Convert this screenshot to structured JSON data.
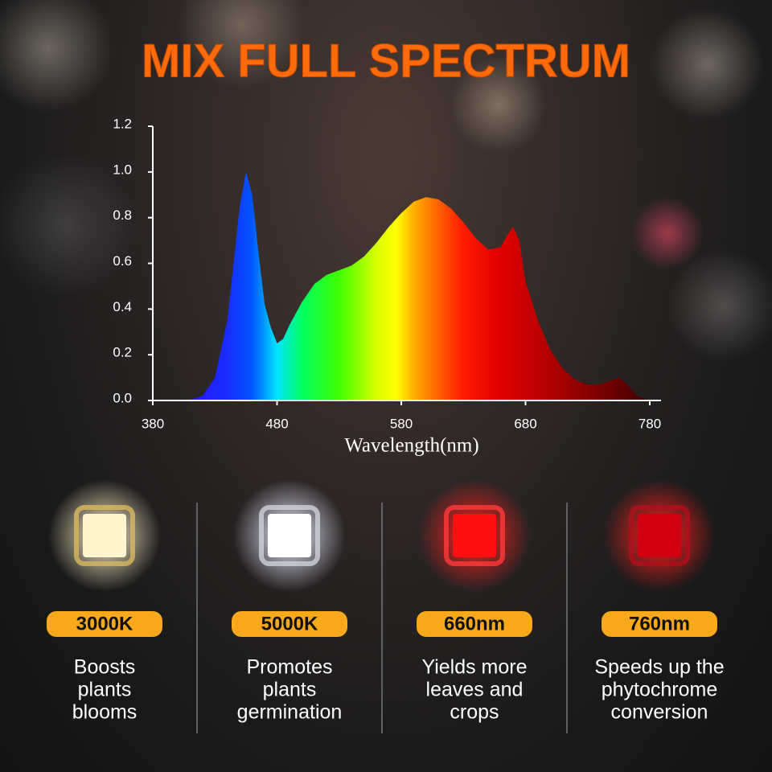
{
  "title": "MIX FULL SPECTRUM",
  "chart_data": {
    "type": "area",
    "x_label": "Wavelength(nm)",
    "x": [
      380,
      400,
      410,
      420,
      430,
      440,
      445,
      450,
      455,
      460,
      465,
      470,
      475,
      480,
      485,
      490,
      500,
      510,
      520,
      530,
      540,
      550,
      560,
      570,
      580,
      590,
      600,
      610,
      620,
      630,
      640,
      650,
      660,
      665,
      670,
      675,
      680,
      690,
      700,
      710,
      720,
      730,
      740,
      750,
      755,
      760,
      770,
      780
    ],
    "values": [
      0,
      0,
      0.003,
      0.02,
      0.1,
      0.35,
      0.6,
      0.85,
      1.0,
      0.9,
      0.65,
      0.42,
      0.32,
      0.25,
      0.27,
      0.33,
      0.43,
      0.51,
      0.55,
      0.57,
      0.59,
      0.63,
      0.69,
      0.76,
      0.82,
      0.87,
      0.89,
      0.88,
      0.84,
      0.78,
      0.71,
      0.66,
      0.67,
      0.72,
      0.76,
      0.7,
      0.52,
      0.35,
      0.22,
      0.14,
      0.09,
      0.07,
      0.07,
      0.09,
      0.1,
      0.08,
      0.02,
      0
    ],
    "xlim": [
      380,
      780
    ],
    "xticks": [
      380,
      480,
      580,
      680,
      780
    ],
    "ylim": [
      0,
      1.2
    ],
    "yticks": [
      {
        "value": 0,
        "label": "0.0"
      },
      {
        "value": 0.2,
        "label": "0.2"
      },
      {
        "value": 0.4,
        "label": "0.4"
      },
      {
        "value": 0.6,
        "label": "0.6"
      },
      {
        "value": 0.8,
        "label": "0.8"
      },
      {
        "value": 1.0,
        "label": "1.0"
      },
      {
        "value": 1.2,
        "label": "1.2"
      }
    ]
  },
  "cards": [
    {
      "label": "3000K",
      "lines": [
        "Boosts",
        "plants",
        "blooms"
      ]
    },
    {
      "label": "5000K",
      "lines": [
        "Promotes",
        "plants",
        "germination"
      ]
    },
    {
      "label": "660nm",
      "lines": [
        "Yields more",
        "leaves and",
        "crops"
      ]
    },
    {
      "label": "760nm",
      "lines": [
        "Speeds up the",
        "phytochrome",
        "conversion"
      ]
    }
  ]
}
